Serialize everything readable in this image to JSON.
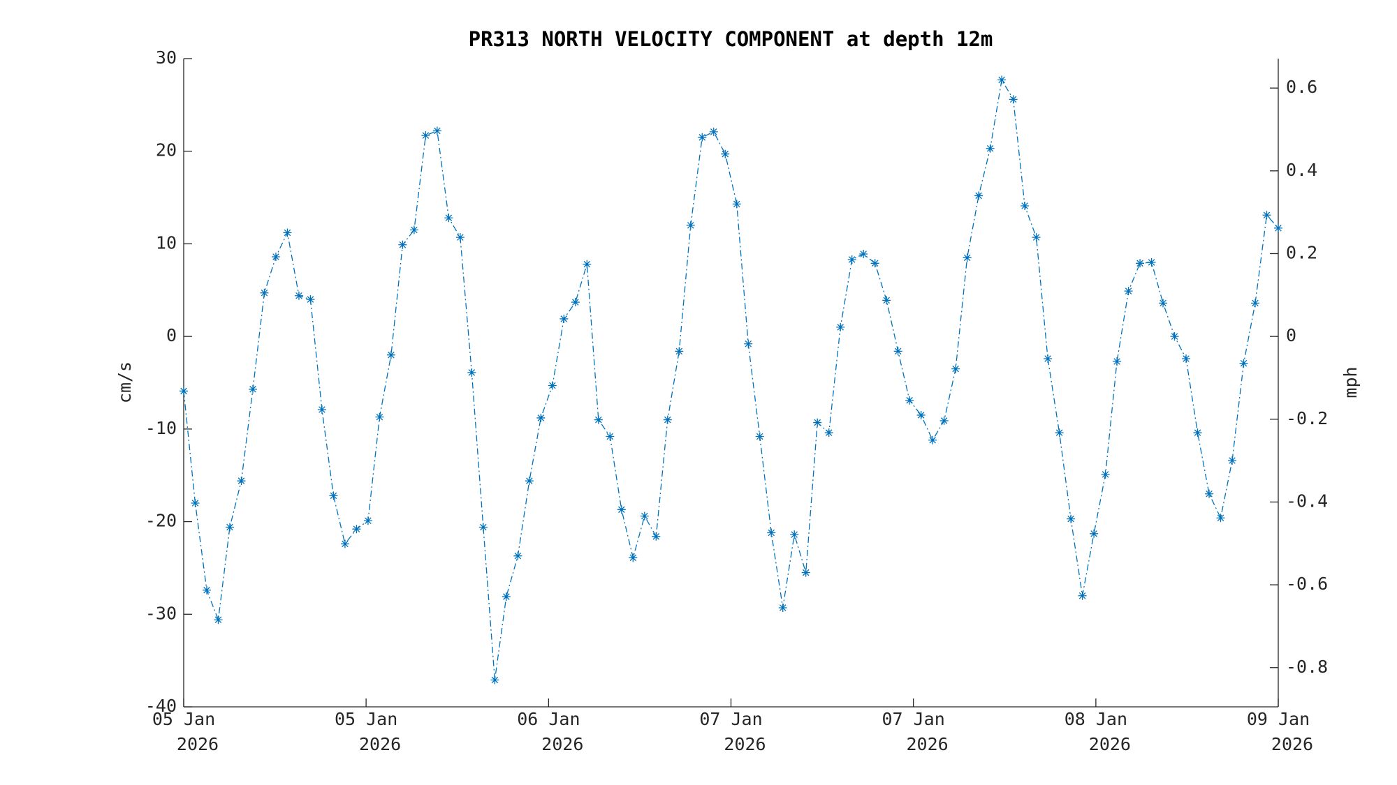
{
  "chart_data": {
    "type": "line",
    "title": "PR313 NORTH VELOCITY COMPONENT at depth 12m",
    "ylabel": "cm/s",
    "y2label": "mph",
    "x": [
      0,
      1,
      2,
      3,
      4,
      5,
      6,
      7,
      8,
      9,
      10,
      11,
      12,
      13,
      14,
      15,
      16,
      17,
      18,
      19,
      20,
      21,
      22,
      23,
      24,
      25,
      26,
      27,
      28,
      29,
      30,
      31,
      32,
      33,
      34,
      35,
      36,
      37,
      38,
      39,
      40,
      41,
      42,
      43,
      44,
      45,
      46,
      47,
      48,
      49,
      50,
      51,
      52,
      53,
      54,
      55,
      56,
      57,
      58,
      59,
      60,
      61,
      62,
      63,
      64,
      65,
      66,
      67,
      68,
      69,
      70,
      71,
      72,
      73,
      74,
      75,
      76,
      77,
      78,
      79,
      80,
      81,
      82,
      83,
      84,
      85,
      86,
      87,
      88,
      89,
      90,
      91,
      92,
      93,
      94,
      95
    ],
    "xlim": [
      0,
      95
    ],
    "xticks": [
      {
        "value": 0,
        "label": "05 Jan\n2026"
      },
      {
        "value": 15.83,
        "label": "05 Jan\n2026"
      },
      {
        "value": 31.67,
        "label": "06 Jan\n2026"
      },
      {
        "value": 47.5,
        "label": "07 Jan\n2026"
      },
      {
        "value": 63.33,
        "label": "07 Jan\n2026"
      },
      {
        "value": 79.17,
        "label": "08 Jan\n2026"
      },
      {
        "value": 95,
        "label": "09 Jan\n2026"
      }
    ],
    "ylim": [
      -40,
      30
    ],
    "yticks": [
      -40,
      -30,
      -20,
      -10,
      0,
      10,
      20,
      30
    ],
    "y2lim": [
      -0.8948,
      0.6711
    ],
    "y2ticks": [
      -0.8,
      -0.6,
      -0.4,
      -0.2,
      0,
      0.2,
      0.4,
      0.6
    ],
    "series": [
      {
        "color": "#0072bd",
        "values": [
          -5.9,
          -18,
          -27.4,
          -30.6,
          -20.6,
          -15.6,
          -5.7,
          4.7,
          8.6,
          11.2,
          4.4,
          4.0,
          -7.9,
          -17.2,
          -22.4,
          -20.8,
          -19.9,
          -8.7,
          -2.0,
          9.9,
          11.5,
          21.7,
          22.2,
          12.8,
          10.7,
          -3.9,
          -20.6,
          -37.1,
          -28.1,
          -23.7,
          -15.6,
          -8.8,
          -5.3,
          1.9,
          3.7,
          7.8,
          -9.0,
          -10.8,
          -18.7,
          -23.9,
          -19.4,
          -21.6,
          -9.0,
          -1.6,
          12.0,
          21.5,
          22.1,
          19.7,
          14.3,
          -0.8,
          -10.8,
          -21.2,
          -29.3,
          -21.4,
          -25.5,
          -9.3,
          -10.4,
          1.0,
          8.3,
          8.9,
          7.9,
          3.9,
          -1.6,
          -6.9,
          -8.5,
          -11.2,
          -9.1,
          -3.5,
          8.5,
          15.2,
          20.3,
          27.7,
          25.6,
          14.1,
          10.7,
          -2.4,
          -10.4,
          -19.7,
          -28.0,
          -21.3,
          -14.9,
          -2.7,
          4.9,
          7.9,
          8.0,
          3.6,
          0,
          -2.4,
          -10.4,
          -17.0,
          -19.6,
          -13.4,
          -2.9,
          3.6,
          13.1,
          11.7
        ]
      }
    ]
  }
}
